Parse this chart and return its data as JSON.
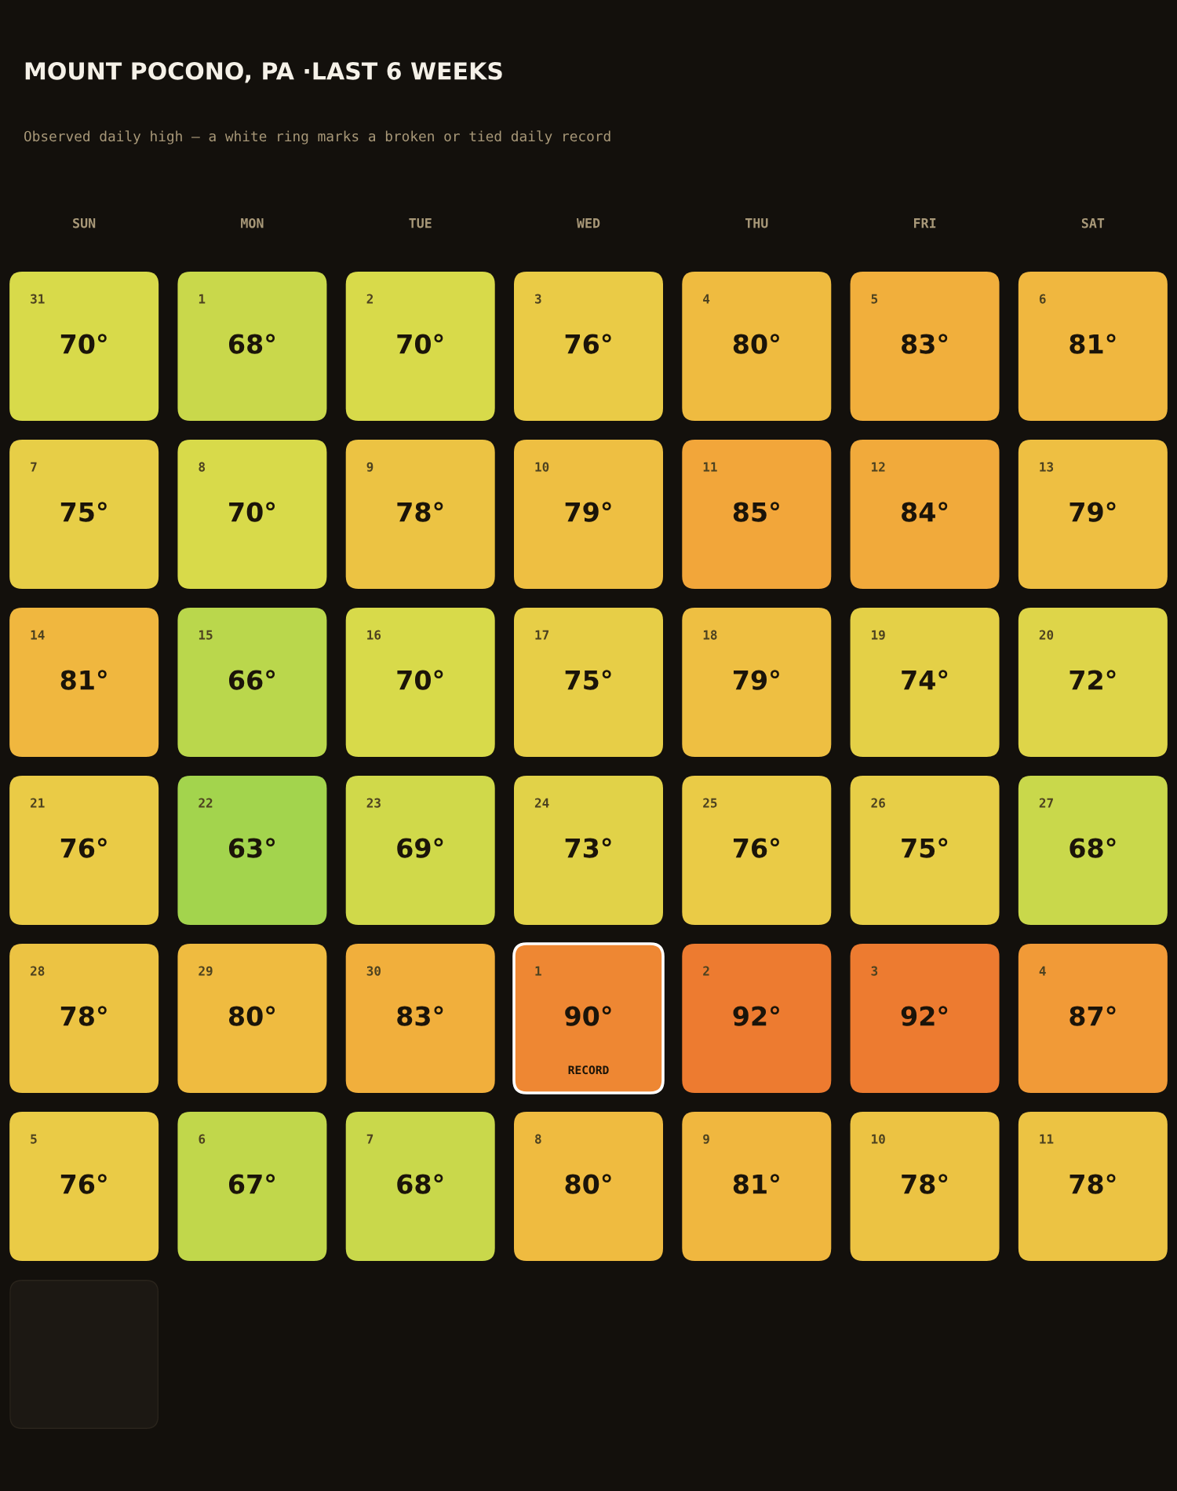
{
  "chart_data": {
    "type": "heatmap",
    "title": "MOUNT POCONO, PA ·LAST 6 WEEKS",
    "subtitle": "Observed daily high — a white ring marks a broken or tied daily record",
    "categories": [
      "SUN",
      "MON",
      "TUE",
      "WED",
      "THU",
      "FRI",
      "SAT"
    ],
    "y_categories": [
      null,
      null,
      null,
      null,
      null,
      null
    ],
    "cells": [
      [
        70,
        68,
        70,
        76,
        80,
        83,
        81
      ],
      [
        75,
        70,
        78,
        79,
        85,
        84,
        79
      ],
      [
        81,
        66,
        70,
        75,
        79,
        74,
        72
      ],
      [
        76,
        63,
        69,
        73,
        76,
        75,
        68
      ],
      [
        78,
        80,
        83,
        90,
        92,
        92,
        87
      ],
      [
        76,
        67,
        68,
        80,
        81,
        78,
        78
      ]
    ],
    "cell_labels": [
      [
        "70°",
        "68°",
        "70°",
        "76°",
        "80°",
        "83°",
        "81°"
      ],
      [
        "75°",
        "70°",
        "78°",
        "79°",
        "85°",
        "84°",
        "79°"
      ],
      [
        "81°",
        "66°",
        "70°",
        "75°",
        "79°",
        "74°",
        "72°"
      ],
      [
        "76°",
        "63°",
        "69°",
        "73°",
        "76°",
        "75°",
        "68°"
      ],
      [
        "78°",
        "80°",
        "83°",
        "90°",
        "92°",
        "92°",
        "87°"
      ],
      [
        "76°",
        "67°",
        "68°",
        "80°",
        "81°",
        "78°",
        "78°"
      ]
    ],
    "annotations": [
      "31",
      "1",
      "2",
      "3",
      "4",
      "5",
      "6",
      "7",
      "8",
      "9",
      "10",
      "11",
      "12",
      "13",
      "14",
      "15",
      "16",
      "17",
      "18",
      "19",
      "20",
      "21",
      "22",
      "23",
      "24",
      "25",
      "26",
      "27",
      "28",
      "29",
      "30",
      "1\nRECORD",
      "2",
      "3",
      "4",
      "5",
      "6",
      "7",
      "8",
      "9",
      "10",
      "11"
    ]
  }
}
